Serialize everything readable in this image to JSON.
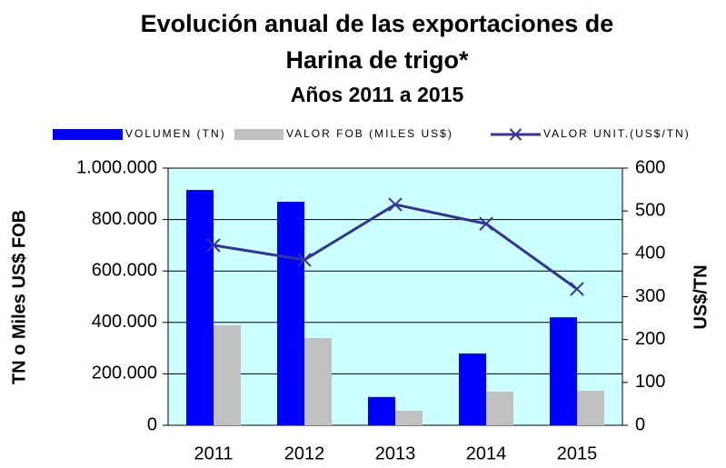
{
  "chart_data": {
    "type": "bar_line",
    "title": [
      "Evolución anual de las exportaciones de",
      "Harina de trigo*"
    ],
    "subtitle": "Años 2011 a 2015",
    "ylabel": "TN o Miles US$ FOB",
    "y2label": "US$/TN",
    "categories": [
      "2011",
      "2012",
      "2013",
      "2014",
      "2015"
    ],
    "series": [
      {
        "name": "VOLUMEN (TN)",
        "color": "#0000ff",
        "kind": "bar",
        "values": [
          915000,
          869000,
          110000,
          279000,
          420000
        ]
      },
      {
        "name": "VALOR FOB (MILES US$)",
        "color": "#c0c0c0",
        "kind": "bar",
        "values": [
          389000,
          339000,
          57000,
          131000,
          134000
        ]
      },
      {
        "name": "VALOR UNIT.(US$/TN)",
        "color": "#333399",
        "kind": "line",
        "axis": "y2",
        "values": [
          420,
          386,
          515,
          470,
          318
        ]
      }
    ],
    "ylim": [
      0,
      1000000
    ],
    "yticks": [
      0,
      {
        "value": 200000,
        "label": "200.000"
      },
      {
        "value": 400000,
        "label": "400.000"
      },
      {
        "value": 600000,
        "label": "600.000"
      },
      {
        "value": 800000,
        "label": "800.000"
      },
      {
        "value": 1000000,
        "label": "1.000.000"
      }
    ],
    "y2lim": [
      0,
      600
    ],
    "y2ticks": [
      0,
      100,
      200,
      300,
      400,
      500,
      600
    ],
    "grid": true,
    "plot_background": "#ccffff"
  }
}
